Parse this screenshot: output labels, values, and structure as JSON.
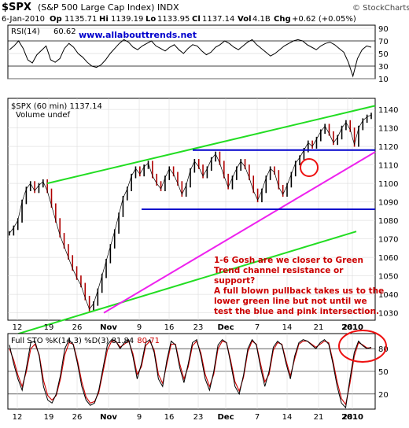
{
  "header": {
    "symbol": "$SPX",
    "name": "(S&P 500 Large Cap Index)",
    "exchange": "INDX",
    "watermark": "© StockCharts.com",
    "date": "6-Jan-2010",
    "open_label": "Op",
    "open": "1135.71",
    "high_label": "Hi",
    "high": "1139.19",
    "low_label": "Lo",
    "low": "1133.95",
    "close_label": "Cl",
    "close": "1137.14",
    "volume_label": "Vol",
    "volume": "4.1B",
    "change_label": "Chg",
    "change": "+0.62 (+0.05%)"
  },
  "chart_data": [
    {
      "type": "line",
      "panel": "rsi",
      "label": "RSI(14)",
      "value": "60.62",
      "url": "www.allabouttrends.net",
      "yticks": [
        90,
        70,
        50,
        30,
        10
      ],
      "ylim": [
        10,
        95
      ],
      "reference_levels": [
        70,
        30
      ],
      "values": [
        56,
        62,
        70,
        58,
        40,
        35,
        48,
        55,
        62,
        40,
        36,
        42,
        58,
        66,
        60,
        50,
        44,
        36,
        30,
        28,
        32,
        40,
        50,
        58,
        66,
        72,
        68,
        60,
        56,
        62,
        66,
        70,
        62,
        58,
        54,
        60,
        64,
        56,
        50,
        58,
        64,
        62,
        54,
        48,
        52,
        60,
        64,
        70,
        66,
        60,
        56,
        62,
        68,
        72,
        64,
        58,
        52,
        46,
        50,
        56,
        62,
        66,
        70,
        72,
        70,
        64,
        60,
        56,
        62,
        66,
        68,
        64,
        58,
        52,
        36,
        14,
        42,
        56,
        62,
        60
      ]
    },
    {
      "type": "line",
      "panel": "price",
      "label": "$SPX (60 min)",
      "value": "1137.14",
      "volume_label": "Volume undef",
      "yticks": [
        1140,
        1130,
        1120,
        1110,
        1100,
        1090,
        1080,
        1070,
        1060,
        1050,
        1040,
        1030
      ],
      "ylim": [
        1026,
        1146
      ],
      "xticks": [
        "12",
        "19",
        "26",
        "Nov",
        "9",
        "16",
        "23",
        "Dec",
        "7",
        "14",
        "21",
        "28",
        "2010"
      ],
      "close_series": [
        1073,
        1076,
        1080,
        1090,
        1097,
        1100,
        1096,
        1099,
        1101,
        1096,
        1088,
        1080,
        1072,
        1066,
        1060,
        1054,
        1049,
        1045,
        1038,
        1032,
        1035,
        1042,
        1050,
        1058,
        1066,
        1074,
        1083,
        1092,
        1097,
        1104,
        1108,
        1105,
        1109,
        1111,
        1104,
        1100,
        1097,
        1103,
        1108,
        1105,
        1100,
        1094,
        1099,
        1107,
        1112,
        1109,
        1104,
        1108,
        1113,
        1116,
        1111,
        1104,
        1098,
        1103,
        1108,
        1112,
        1109,
        1103,
        1096,
        1091,
        1096,
        1103,
        1108,
        1106,
        1098,
        1094,
        1099,
        1105,
        1111,
        1114,
        1118,
        1122,
        1120,
        1124,
        1128,
        1131,
        1127,
        1122,
        1125,
        1130,
        1133,
        1129,
        1121,
        1130,
        1134,
        1136,
        1137
      ],
      "trend_lines": [
        {
          "name": "green-upper",
          "color": "#22dd22",
          "x0": "Oct 19",
          "y0": 1100,
          "x1": "Jan 6",
          "y1": 1142
        },
        {
          "name": "green-lower",
          "color": "#22dd22",
          "x0": "Oct 12",
          "y0": 1017,
          "x1": "Jan 4",
          "y1": 1074
        },
        {
          "name": "pink-support",
          "color": "#ee22ee",
          "x0": "Oct 29",
          "y0": 1030,
          "x1": "Jan 6",
          "y1": 1117
        },
        {
          "name": "blue-upper",
          "color": "#0000cc",
          "x0": "Nov 23",
          "y0": 1118,
          "x1": "Jan 6",
          "y1": 1118
        },
        {
          "name": "blue-lower",
          "color": "#0000cc",
          "x0": "Nov 13",
          "y0": 1086,
          "x1": "Jan 6",
          "y1": 1086
        }
      ],
      "annotation_lines": [
        "1-6 Gosh are we closer to Green",
        "Trend channel resistance or",
        "support?",
        "A full blown pullback takes us to the",
        "lower green line but not until we",
        "test the blue and pink intersection."
      ],
      "annotation_color": "#cc0000",
      "highlight_color": "#ee1111"
    },
    {
      "type": "line",
      "panel": "stochastic",
      "label": "Full STO %K(14,3) %D(3)",
      "k_value": "81.84",
      "d_value": "80.71",
      "yticks": [
        80,
        50,
        20
      ],
      "ylim": [
        0,
        100
      ],
      "reference_levels": [
        80,
        20
      ],
      "xticks": [
        "12",
        "19",
        "26",
        "Nov",
        "9",
        "16",
        "23",
        "Dec",
        "7",
        "14",
        "21",
        "28",
        "2010"
      ],
      "k_values": [
        85,
        60,
        40,
        25,
        55,
        88,
        90,
        70,
        30,
        12,
        8,
        20,
        45,
        80,
        92,
        85,
        60,
        30,
        12,
        5,
        8,
        25,
        55,
        85,
        92,
        90,
        80,
        88,
        92,
        70,
        40,
        60,
        88,
        92,
        75,
        40,
        30,
        65,
        90,
        85,
        55,
        35,
        60,
        88,
        92,
        70,
        40,
        25,
        50,
        85,
        92,
        88,
        60,
        30,
        20,
        45,
        80,
        92,
        85,
        55,
        30,
        50,
        82,
        90,
        85,
        60,
        40,
        70,
        88,
        92,
        90,
        85,
        80,
        88,
        92,
        86,
        60,
        30,
        8,
        2,
        40,
        75,
        90,
        84,
        80,
        82
      ],
      "d_values": [
        80,
        65,
        45,
        30,
        50,
        80,
        86,
        72,
        38,
        18,
        12,
        18,
        40,
        72,
        88,
        86,
        64,
        36,
        16,
        8,
        10,
        22,
        50,
        78,
        90,
        90,
        82,
        86,
        90,
        74,
        46,
        56,
        84,
        90,
        78,
        46,
        34,
        60,
        86,
        86,
        60,
        40,
        56,
        84,
        90,
        74,
        46,
        30,
        46,
        80,
        90,
        88,
        64,
        36,
        24,
        42,
        76,
        90,
        86,
        60,
        36,
        46,
        78,
        88,
        86,
        64,
        44,
        66,
        86,
        90,
        90,
        86,
        82,
        86,
        90,
        88,
        64,
        36,
        14,
        6,
        34,
        70,
        88,
        85,
        81,
        81
      ]
    }
  ]
}
